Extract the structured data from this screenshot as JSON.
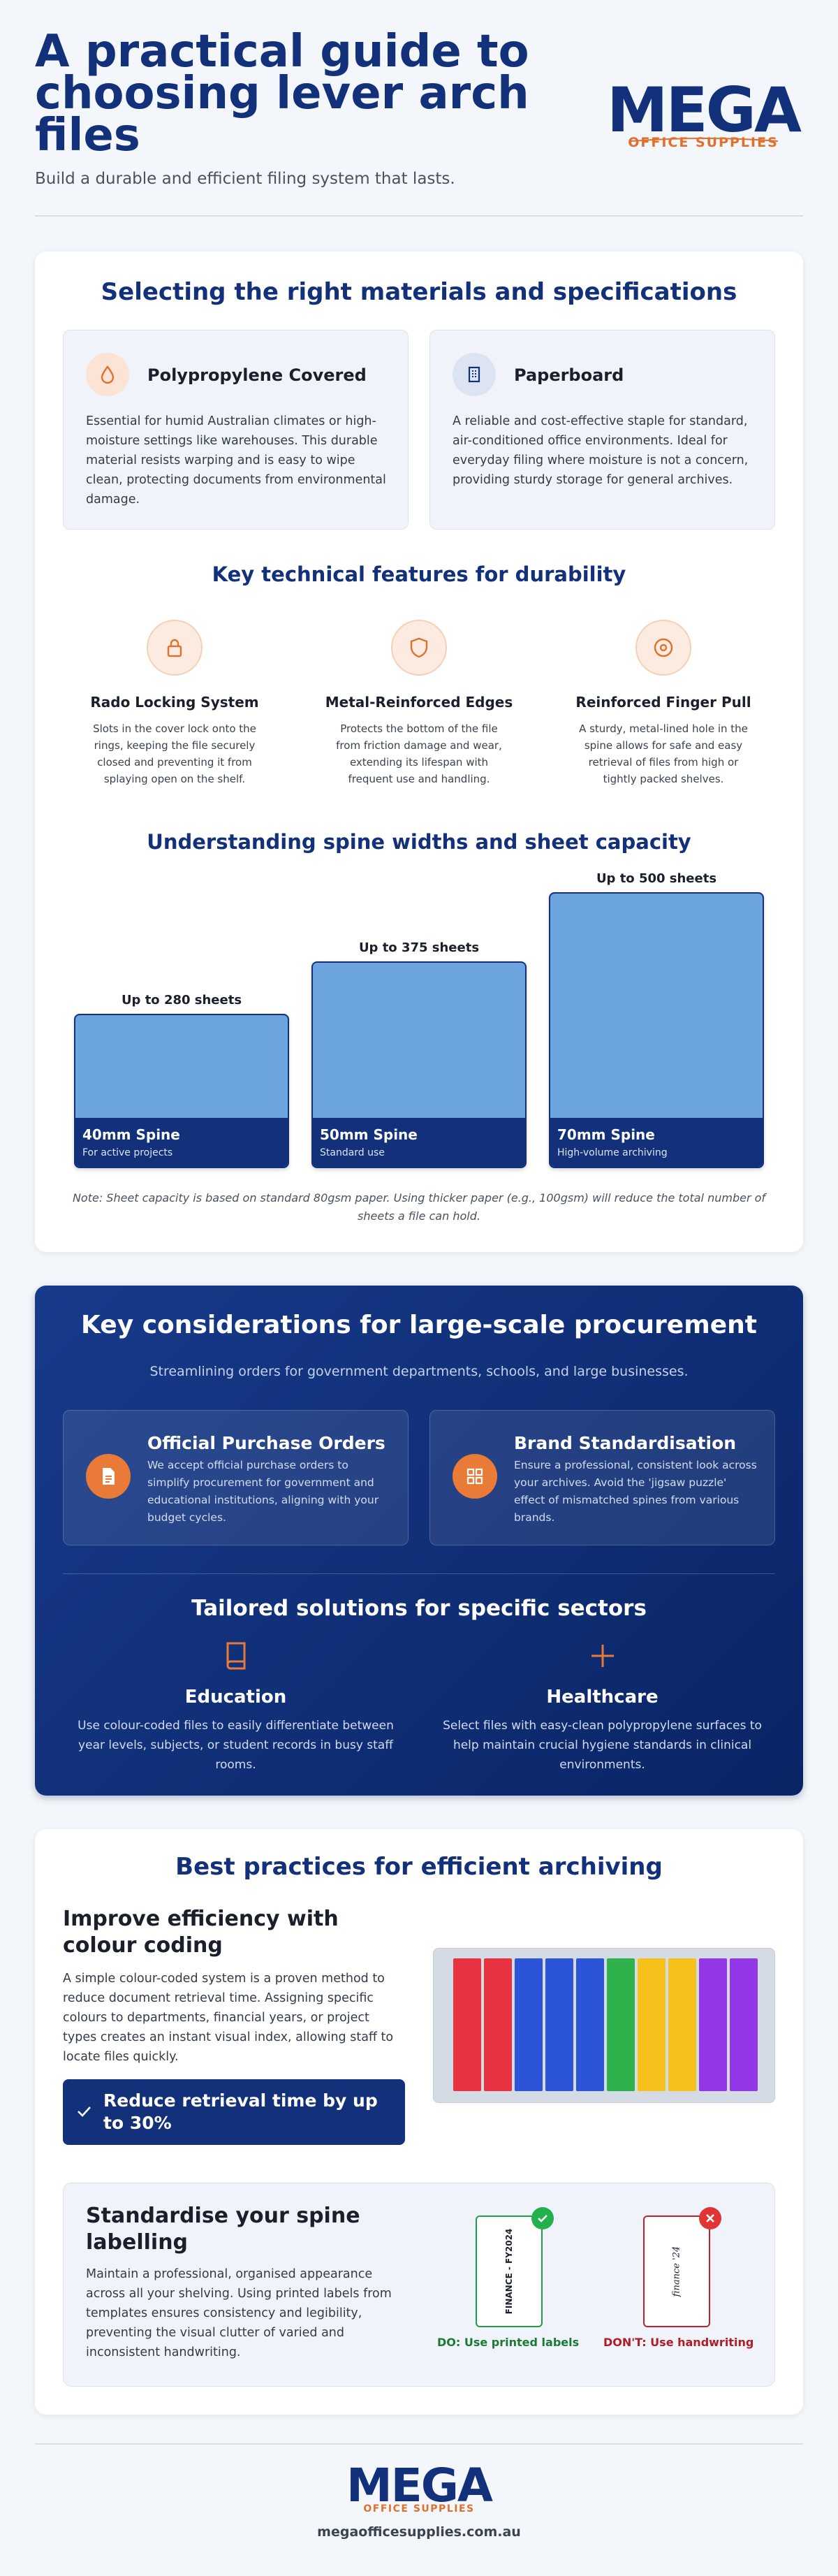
{
  "header": {
    "title": "A practical guide to choosing lever arch files",
    "subtitle": "Build a durable and efficient filing system that lasts."
  },
  "brand": {
    "logo_word": "MEGA",
    "logo_sub": "OFFICE SUPPLIES",
    "website": "megaofficesupplies.com.au",
    "colors": {
      "navy": "#12317a",
      "orange": "#e0712c",
      "light_blue": "#6ca4e0"
    }
  },
  "materials": {
    "title": "Selecting the right materials and specifications",
    "items": [
      {
        "icon": "droplet-icon",
        "title": "Polypropylene Covered",
        "text": "Essential for humid Australian climates or high-moisture settings like warehouses. This durable material resists warping and is easy to wipe clean, protecting documents from environmental damage."
      },
      {
        "icon": "building-icon",
        "title": "Paperboard",
        "text": "A reliable and cost-effective staple for standard, air-conditioned office environments. Ideal for everyday filing where moisture is not a concern, providing sturdy storage for general archives."
      }
    ]
  },
  "features": {
    "title": "Key technical features for durability",
    "items": [
      {
        "icon": "lock-icon",
        "title": "Rado Locking System",
        "text": "Slots in the cover lock onto the rings, keeping the file securely closed and preventing it from splaying open on the shelf."
      },
      {
        "icon": "shield-icon",
        "title": "Metal-Reinforced Edges",
        "text": "Protects the bottom of the file from friction damage and wear, extending its lifespan with frequent use and handling."
      },
      {
        "icon": "ring-icon",
        "title": "Reinforced Finger Pull",
        "text": "A sturdy, metal-lined hole in the spine allows for safe and easy retrieval of files from high or tightly packed shelves."
      }
    ]
  },
  "spines": {
    "title": "Understanding spine widths and sheet capacity",
    "items": [
      {
        "capacity": "Up to 280 sheets",
        "sheets": 280,
        "name": "40mm Spine",
        "use": "For active projects"
      },
      {
        "capacity": "Up to 375 sheets",
        "sheets": 375,
        "name": "50mm Spine",
        "use": "Standard use"
      },
      {
        "capacity": "Up to 500 sheets",
        "sheets": 500,
        "name": "70mm Spine",
        "use": "High-volume archiving"
      }
    ],
    "note": "Note: Sheet capacity is based on standard 80gsm paper. Using thicker paper (e.g., 100gsm) will reduce the total number of sheets a file can hold."
  },
  "procurement": {
    "title": "Key considerations for large-scale procurement",
    "subtitle": "Streamlining orders for government departments, schools, and large businesses.",
    "items": [
      {
        "icon": "document-icon",
        "title": "Official Purchase Orders",
        "text": "We accept official purchase orders to simplify procurement for government and educational institutions, aligning with your budget cycles."
      },
      {
        "icon": "grid-icon",
        "title": "Brand Standardisation",
        "text": "Ensure a professional, consistent look across your archives. Avoid the 'jigsaw puzzle' effect of mismatched spines from various brands."
      }
    ],
    "sectors_title": "Tailored solutions for specific sectors",
    "sectors": [
      {
        "icon": "book-icon",
        "title": "Education",
        "text": "Use colour-coded files to easily differentiate between year levels, subjects, or student records in busy staff rooms."
      },
      {
        "icon": "plus-icon",
        "title": "Healthcare",
        "text": "Select files with easy-clean polypropylene surfaces to help maintain crucial hygiene standards in clinical environments."
      }
    ]
  },
  "practices": {
    "title": "Best practices for efficient archiving",
    "colour_heading": "Improve efficiency with colour coding",
    "colour_text": "A simple colour-coded system is a proven method to reduce document retrieval time. Assigning specific colours to departments, financial years, or project types creates an instant visual index, allowing staff to locate files quickly.",
    "callout": "Reduce retrieval time by up to 30%",
    "binder_colors": [
      "#e8323f",
      "#e8323f",
      "#2b54d8",
      "#2b54d8",
      "#2b54d8",
      "#2fb24c",
      "#f5c11a",
      "#f5c11a",
      "#9236e8",
      "#9236e8"
    ],
    "label_heading": "Standardise your spine labelling",
    "label_text": "Maintain a professional, organised appearance across all your shelving. Using printed labels from templates ensures consistency and legibility, preventing the visual clutter of varied and inconsistent handwriting.",
    "do_sample": "FINANCE - FY2024",
    "do_caption": "DO: Use printed labels",
    "dont_sample": "finance '24",
    "dont_caption": "DON'T: Use handwriting"
  }
}
